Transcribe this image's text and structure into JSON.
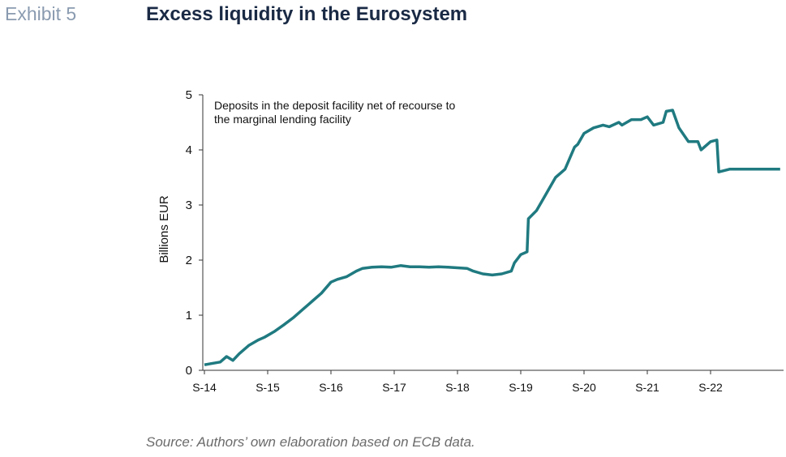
{
  "header": {
    "exhibit": "Exhibit 5",
    "title": "Excess liquidity in the Eurosystem"
  },
  "footer": {
    "source": "Source: Authors’ own elaboration based on ECB data."
  },
  "colors": {
    "line": "#1f7a80",
    "axis": "#333333",
    "title": "#1a2a45",
    "exhibit": "#8a9bb0"
  },
  "chart_data": {
    "type": "line",
    "ylabel": "Billions EUR",
    "xlabel": "",
    "ylim": [
      0,
      5
    ],
    "yticks": [
      "0",
      "1",
      "2",
      "3",
      "4",
      "5"
    ],
    "xticks": [
      "S-14",
      "S-15",
      "S-16",
      "S-17",
      "S-18",
      "S-19",
      "S-20",
      "S-21",
      "S-22"
    ],
    "xlim": [
      2014.7,
      2023.8
    ],
    "grid": false,
    "legend": "none",
    "annotation": "Deposits in the deposit facility net of recourse to the marginal lending facility",
    "series": [
      {
        "x": [
          2014.7,
          2014.8,
          2014.95,
          2015.05,
          2015.15,
          2015.25,
          2015.4,
          2015.55,
          2015.65,
          2015.8,
          2015.95,
          2016.1,
          2016.25,
          2016.4,
          2016.55,
          2016.7,
          2016.8,
          2016.95,
          2017.1,
          2017.2,
          2017.35,
          2017.5,
          2017.65,
          2017.8,
          2017.95,
          2018.1,
          2018.25,
          2018.4,
          2018.55,
          2018.7,
          2018.85,
          2018.95,
          2019.1,
          2019.25,
          2019.4,
          2019.55,
          2019.6,
          2019.7,
          2019.8,
          2019.82,
          2019.95,
          2020.05,
          2020.15,
          2020.25,
          2020.4,
          2020.55,
          2020.6,
          2020.7,
          2020.85,
          2021.0,
          2021.1,
          2021.25,
          2021.3,
          2021.45,
          2021.6,
          2021.7,
          2021.8,
          2021.95,
          2022.0,
          2022.1,
          2022.2,
          2022.35,
          2022.4,
          2022.5,
          2022.55,
          2022.7,
          2022.8,
          2022.83,
          2022.9,
          2023.0,
          2023.1,
          2023.2,
          2023.25,
          2023.3,
          2023.4,
          2023.5,
          2023.6,
          2023.7,
          2023.8
        ],
        "values": [
          0.1,
          0.12,
          0.15,
          0.25,
          0.18,
          0.3,
          0.45,
          0.55,
          0.6,
          0.7,
          0.82,
          0.95,
          1.1,
          1.25,
          1.4,
          1.6,
          1.65,
          1.7,
          1.8,
          1.85,
          1.87,
          1.88,
          1.87,
          1.9,
          1.88,
          1.88,
          1.87,
          1.88,
          1.87,
          1.86,
          1.85,
          1.8,
          1.75,
          1.73,
          1.75,
          1.8,
          1.95,
          2.1,
          2.15,
          2.75,
          2.9,
          3.1,
          3.3,
          3.5,
          3.65,
          4.05,
          4.1,
          4.3,
          4.4,
          4.45,
          4.42,
          4.5,
          4.45,
          4.55,
          4.55,
          4.6,
          4.45,
          4.5,
          4.7,
          4.72,
          4.4,
          4.15,
          4.15,
          4.15,
          4.0,
          4.15,
          4.18,
          3.6,
          3.62,
          3.65,
          3.65,
          3.65,
          3.65,
          3.65,
          3.65,
          3.65,
          3.65,
          3.65,
          3.65
        ]
      }
    ]
  }
}
